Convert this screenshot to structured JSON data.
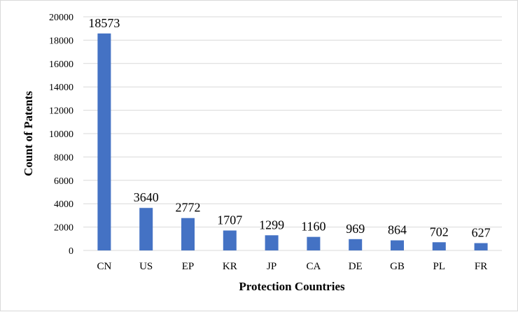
{
  "chart_data": {
    "type": "bar",
    "xlabel": "Protection Countries",
    "ylabel": "Count of Patents",
    "categories": [
      "CN",
      "US",
      "EP",
      "KR",
      "JP",
      "CA",
      "DE",
      "GB",
      "PL",
      "FR"
    ],
    "values": [
      18573,
      3640,
      2772,
      1707,
      1299,
      1160,
      969,
      864,
      702,
      627
    ],
    "ylim": [
      0,
      20000
    ],
    "yticks": [
      0,
      2000,
      4000,
      6000,
      8000,
      10000,
      12000,
      14000,
      16000,
      18000,
      20000
    ],
    "grid": true,
    "legend": "none",
    "bar_color": "#4472c4",
    "grid_color": "#d9d9d9"
  }
}
